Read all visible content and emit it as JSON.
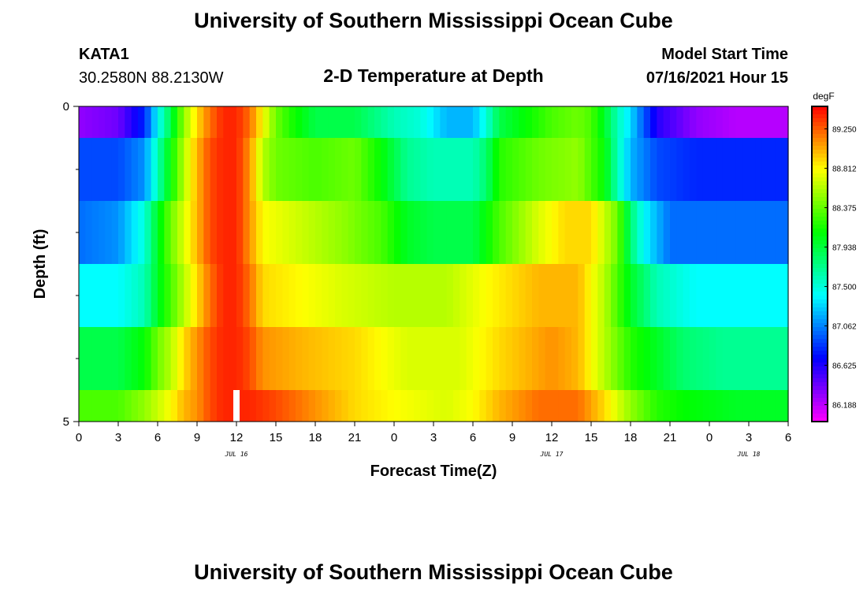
{
  "header": {
    "title": "University of Southern Mississippi Ocean Cube",
    "station": "KATA1",
    "coords": "30.2580N  88.2130W",
    "subtitle": "2-D Temperature at Depth",
    "model_label": "Model Start Time",
    "model_time": "07/16/2021 Hour 15"
  },
  "footer": {
    "title": "University of Southern Mississippi Ocean Cube"
  },
  "chart_data": {
    "type": "heatmap",
    "xlabel": "Forecast Time(Z)",
    "ylabel": "Depth (ft)",
    "xlim": [
      0,
      54
    ],
    "ylim": [
      0,
      5
    ],
    "x_tick_values": [
      0,
      3,
      6,
      9,
      12,
      15,
      18,
      21,
      24,
      27,
      30,
      33,
      36,
      39,
      42,
      45,
      48,
      51,
      54
    ],
    "x_tick_labels": [
      "0",
      "3",
      "6",
      "9",
      "12",
      "15",
      "18",
      "21",
      "0",
      "3",
      "6",
      "9",
      "12",
      "15",
      "18",
      "21",
      "0",
      "3",
      "6"
    ],
    "y_tick_labels": [
      {
        "value": 0,
        "label": "0"
      },
      {
        "value": 5,
        "label": "5"
      }
    ],
    "y_minor_ticks": [
      1,
      2,
      3,
      4
    ],
    "date_labels": [
      {
        "x": 12,
        "label": "JUL 16"
      },
      {
        "x": 36,
        "label": "JUL 17"
      },
      {
        "x": 51,
        "label": "JUL 18"
      }
    ],
    "current_time_marker": {
      "x": 12,
      "depth_range": [
        4.5,
        5
      ]
    },
    "depth_bands": [
      0,
      0.5,
      1.5,
      2.5,
      3.5,
      4.5,
      5
    ],
    "colorbar": {
      "unit": "degF",
      "min": 86.0,
      "max": 89.5,
      "labels": [
        "89.250",
        "88.812",
        "88.375",
        "87.938",
        "87.500",
        "87.062",
        "86.625",
        "86.188"
      ],
      "label_values": [
        89.25,
        88.812,
        88.375,
        87.938,
        87.5,
        87.062,
        86.625,
        86.188
      ]
    },
    "rows": [
      {
        "depth_top": 0,
        "depth_bottom": 0.5,
        "keys": [
          [
            0,
            86.3
          ],
          [
            3,
            86.4
          ],
          [
            5,
            86.8
          ],
          [
            6,
            87.4
          ],
          [
            7,
            87.9
          ],
          [
            8,
            88.5
          ],
          [
            9,
            88.9
          ],
          [
            10,
            89.2
          ],
          [
            11,
            89.4
          ],
          [
            12,
            89.4
          ],
          [
            13,
            89.2
          ],
          [
            14,
            88.8
          ],
          [
            15,
            88.4
          ],
          [
            16,
            88.2
          ],
          [
            18,
            87.9
          ],
          [
            21,
            87.9
          ],
          [
            24,
            87.6
          ],
          [
            26,
            87.5
          ],
          [
            28,
            87.2
          ],
          [
            30,
            87.2
          ],
          [
            31,
            87.5
          ],
          [
            32,
            87.9
          ],
          [
            34,
            88.1
          ],
          [
            36,
            88.3
          ],
          [
            38,
            88.4
          ],
          [
            39,
            88.3
          ],
          [
            40,
            88.0
          ],
          [
            41,
            87.6
          ],
          [
            42,
            87.3
          ],
          [
            44,
            86.6
          ],
          [
            47,
            86.3
          ],
          [
            50,
            86.2
          ],
          [
            54,
            86.2
          ]
        ]
      },
      {
        "depth_top": 0.5,
        "depth_bottom": 1.5,
        "keys": [
          [
            0,
            86.9
          ],
          [
            3,
            86.9
          ],
          [
            5,
            87.1
          ],
          [
            6,
            87.6
          ],
          [
            7,
            88.1
          ],
          [
            8,
            88.6
          ],
          [
            9,
            89.0
          ],
          [
            10,
            89.3
          ],
          [
            11,
            89.4
          ],
          [
            12,
            89.4
          ],
          [
            13,
            89.1
          ],
          [
            14,
            88.6
          ],
          [
            15,
            88.4
          ],
          [
            18,
            88.3
          ],
          [
            21,
            88.4
          ],
          [
            23,
            88.1
          ],
          [
            25,
            87.7
          ],
          [
            27,
            87.6
          ],
          [
            30,
            87.6
          ],
          [
            31,
            87.8
          ],
          [
            32,
            88.2
          ],
          [
            35,
            88.4
          ],
          [
            38,
            88.5
          ],
          [
            40,
            88.1
          ],
          [
            41,
            87.6
          ],
          [
            42,
            87.2
          ],
          [
            44,
            86.9
          ],
          [
            47,
            86.8
          ],
          [
            50,
            86.8
          ],
          [
            54,
            86.8
          ]
        ]
      },
      {
        "depth_top": 1.5,
        "depth_bottom": 2.5,
        "keys": [
          [
            0,
            87.0
          ],
          [
            3,
            87.1
          ],
          [
            5,
            87.5
          ],
          [
            6,
            88.0
          ],
          [
            7,
            88.4
          ],
          [
            8,
            88.7
          ],
          [
            9,
            89.0
          ],
          [
            10,
            89.3
          ],
          [
            11,
            89.4
          ],
          [
            12,
            89.4
          ],
          [
            13,
            89.1
          ],
          [
            14,
            88.8
          ],
          [
            16,
            88.7
          ],
          [
            20,
            88.5
          ],
          [
            23,
            88.3
          ],
          [
            25,
            88.0
          ],
          [
            27,
            87.9
          ],
          [
            30,
            87.9
          ],
          [
            32,
            88.3
          ],
          [
            35,
            88.7
          ],
          [
            37,
            88.9
          ],
          [
            39,
            88.9
          ],
          [
            41,
            88.4
          ],
          [
            42,
            87.8
          ],
          [
            43,
            87.4
          ],
          [
            45,
            87.0
          ],
          [
            48,
            87.0
          ],
          [
            54,
            87.0
          ]
        ]
      },
      {
        "depth_top": 2.5,
        "depth_bottom": 3.5,
        "keys": [
          [
            0,
            87.4
          ],
          [
            3,
            87.4
          ],
          [
            5,
            87.6
          ],
          [
            6,
            88.0
          ],
          [
            7,
            88.3
          ],
          [
            8,
            88.6
          ],
          [
            9,
            88.9
          ],
          [
            10,
            89.2
          ],
          [
            11,
            89.4
          ],
          [
            12,
            89.4
          ],
          [
            13,
            89.2
          ],
          [
            14,
            88.9
          ],
          [
            17,
            88.8
          ],
          [
            20,
            88.7
          ],
          [
            24,
            88.6
          ],
          [
            28,
            88.6
          ],
          [
            31,
            88.8
          ],
          [
            35,
            89.0
          ],
          [
            38,
            89.0
          ],
          [
            40,
            88.6
          ],
          [
            42,
            88.0
          ],
          [
            44,
            87.6
          ],
          [
            47,
            87.4
          ],
          [
            54,
            87.4
          ]
        ]
      },
      {
        "depth_top": 3.5,
        "depth_bottom": 4.5,
        "keys": [
          [
            0,
            87.9
          ],
          [
            3,
            87.9
          ],
          [
            5,
            88.1
          ],
          [
            6,
            88.4
          ],
          [
            7,
            88.6
          ],
          [
            8,
            88.9
          ],
          [
            9,
            89.1
          ],
          [
            10,
            89.3
          ],
          [
            11,
            89.4
          ],
          [
            12,
            89.4
          ],
          [
            13,
            89.3
          ],
          [
            14,
            89.1
          ],
          [
            17,
            89.0
          ],
          [
            21,
            88.9
          ],
          [
            25,
            88.7
          ],
          [
            29,
            88.7
          ],
          [
            32,
            88.9
          ],
          [
            36,
            89.1
          ],
          [
            38,
            89.0
          ],
          [
            40,
            88.6
          ],
          [
            42,
            88.2
          ],
          [
            44,
            88.0
          ],
          [
            46,
            87.8
          ],
          [
            49,
            87.7
          ],
          [
            54,
            87.7
          ]
        ]
      },
      {
        "depth_top": 4.5,
        "depth_bottom": 5,
        "keys": [
          [
            0,
            88.3
          ],
          [
            3,
            88.3
          ],
          [
            5,
            88.5
          ],
          [
            7,
            88.8
          ],
          [
            8,
            89.0
          ],
          [
            9,
            89.1
          ],
          [
            10,
            89.3
          ],
          [
            11,
            89.4
          ],
          [
            12,
            89.4
          ],
          [
            13,
            89.4
          ],
          [
            15,
            89.3
          ],
          [
            18,
            89.1
          ],
          [
            21,
            88.9
          ],
          [
            24,
            88.8
          ],
          [
            28,
            88.7
          ],
          [
            30,
            88.8
          ],
          [
            32,
            89.0
          ],
          [
            35,
            89.2
          ],
          [
            38,
            89.2
          ],
          [
            40,
            88.9
          ],
          [
            42,
            88.5
          ],
          [
            44,
            88.2
          ],
          [
            46,
            88.1
          ],
          [
            50,
            88.0
          ],
          [
            54,
            88.0
          ]
        ]
      }
    ]
  }
}
